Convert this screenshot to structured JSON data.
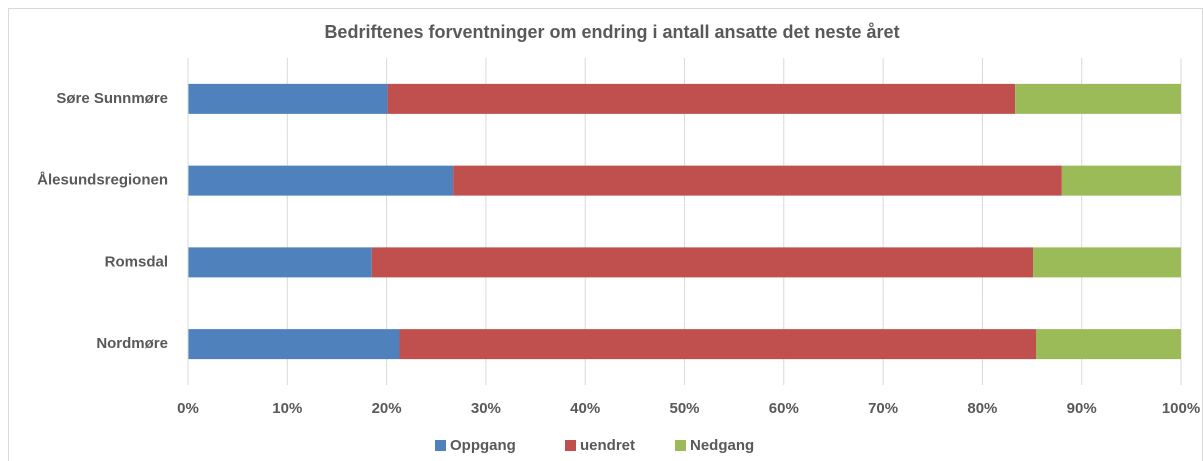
{
  "chart_data": {
    "type": "stacked_bar_horizontal",
    "title": "Bedriftenes forventninger om endring i antall ansatte det neste året",
    "categories": [
      "Søre Sunnmøre",
      "Ålesundsregionen",
      "Romsdal",
      "Nordmøre"
    ],
    "series": [
      {
        "name": "Oppgang",
        "color": "#4f81bd",
        "values": [
          20.1,
          26.7,
          18.5,
          21.3
        ]
      },
      {
        "name": "uendret",
        "color": "#c0504d",
        "values": [
          63.2,
          61.3,
          66.6,
          64.1
        ]
      },
      {
        "name": "Nedgang",
        "color": "#9bbb59",
        "values": [
          16.7,
          12.0,
          14.9,
          14.6
        ]
      }
    ],
    "xlim": [
      0,
      100
    ],
    "xticks": [
      {
        "value": 0,
        "label": "0%"
      },
      {
        "value": 10,
        "label": "10%"
      },
      {
        "value": 20,
        "label": "20%"
      },
      {
        "value": 30,
        "label": "30%"
      },
      {
        "value": 40,
        "label": "40%"
      },
      {
        "value": 50,
        "label": "50%"
      },
      {
        "value": 60,
        "label": "60%"
      },
      {
        "value": 70,
        "label": "70%"
      },
      {
        "value": 80,
        "label": "80%"
      },
      {
        "value": 90,
        "label": "90%"
      },
      {
        "value": 100,
        "label": "100%"
      }
    ],
    "grid": true,
    "legend": "bottom"
  }
}
